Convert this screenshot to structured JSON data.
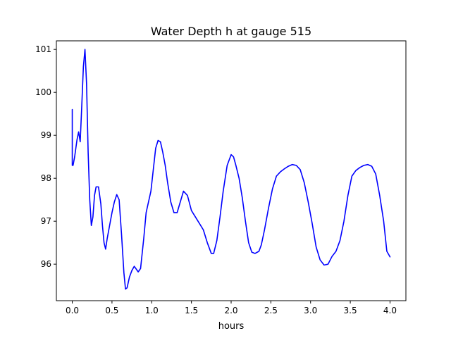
{
  "chart_data": {
    "type": "line",
    "title": "Water Depth h at gauge 515",
    "xlabel": "hours",
    "ylabel": "",
    "xlim": [
      -0.2,
      4.2
    ],
    "ylim": [
      95.15,
      101.2
    ],
    "xticks": [
      0.0,
      0.5,
      1.0,
      1.5,
      2.0,
      2.5,
      3.0,
      3.5,
      4.0
    ],
    "xtick_labels": [
      "0.0",
      "0.5",
      "1.0",
      "1.5",
      "2.0",
      "2.5",
      "3.0",
      "3.5",
      "4.0"
    ],
    "yticks": [
      96,
      97,
      98,
      99,
      100,
      101
    ],
    "ytick_labels": [
      "96",
      "97",
      "98",
      "99",
      "100",
      "101"
    ],
    "grid": false,
    "series": [
      {
        "color": "#0000ff",
        "x": [
          0.0,
          0.0,
          0.01,
          0.03,
          0.06,
          0.08,
          0.1,
          0.12,
          0.14,
          0.16,
          0.18,
          0.2,
          0.22,
          0.24,
          0.26,
          0.28,
          0.3,
          0.33,
          0.36,
          0.38,
          0.4,
          0.42,
          0.44,
          0.47,
          0.5,
          0.53,
          0.56,
          0.59,
          0.62,
          0.65,
          0.67,
          0.69,
          0.72,
          0.75,
          0.78,
          0.8,
          0.83,
          0.86,
          0.9,
          0.93,
          0.96,
          0.99,
          1.02,
          1.05,
          1.08,
          1.11,
          1.14,
          1.17,
          1.2,
          1.24,
          1.28,
          1.32,
          1.36,
          1.4,
          1.45,
          1.5,
          1.55,
          1.6,
          1.65,
          1.7,
          1.75,
          1.78,
          1.82,
          1.86,
          1.9,
          1.95,
          2.0,
          2.03,
          2.06,
          2.1,
          2.14,
          2.18,
          2.22,
          2.26,
          2.3,
          2.35,
          2.38,
          2.42,
          2.47,
          2.52,
          2.57,
          2.62,
          2.67,
          2.72,
          2.77,
          2.82,
          2.87,
          2.92,
          2.97,
          3.02,
          3.07,
          3.12,
          3.17,
          3.22,
          3.27,
          3.32,
          3.37,
          3.42,
          3.47,
          3.52,
          3.57,
          3.62,
          3.67,
          3.72,
          3.77,
          3.82,
          3.87,
          3.92,
          3.96,
          4.0
        ],
        "y": [
          99.6,
          98.3,
          98.3,
          98.5,
          98.9,
          99.08,
          98.85,
          99.7,
          100.6,
          101.0,
          100.2,
          98.6,
          97.5,
          96.9,
          97.1,
          97.6,
          97.8,
          97.8,
          97.4,
          96.9,
          96.5,
          96.35,
          96.6,
          96.9,
          97.2,
          97.45,
          97.62,
          97.5,
          96.7,
          95.8,
          95.42,
          95.45,
          95.7,
          95.85,
          95.95,
          95.9,
          95.82,
          95.9,
          96.6,
          97.2,
          97.45,
          97.7,
          98.2,
          98.7,
          98.88,
          98.85,
          98.6,
          98.3,
          97.9,
          97.45,
          97.2,
          97.2,
          97.45,
          97.7,
          97.6,
          97.25,
          97.1,
          96.95,
          96.8,
          96.5,
          96.25,
          96.25,
          96.55,
          97.1,
          97.7,
          98.3,
          98.55,
          98.5,
          98.3,
          98.0,
          97.55,
          97.0,
          96.5,
          96.28,
          96.25,
          96.3,
          96.45,
          96.8,
          97.3,
          97.75,
          98.05,
          98.15,
          98.22,
          98.28,
          98.32,
          98.3,
          98.2,
          97.9,
          97.45,
          96.95,
          96.4,
          96.1,
          95.98,
          96.0,
          96.18,
          96.3,
          96.55,
          97.0,
          97.6,
          98.05,
          98.18,
          98.25,
          98.3,
          98.32,
          98.28,
          98.1,
          97.6,
          97.0,
          96.3,
          96.17
        ]
      }
    ]
  }
}
